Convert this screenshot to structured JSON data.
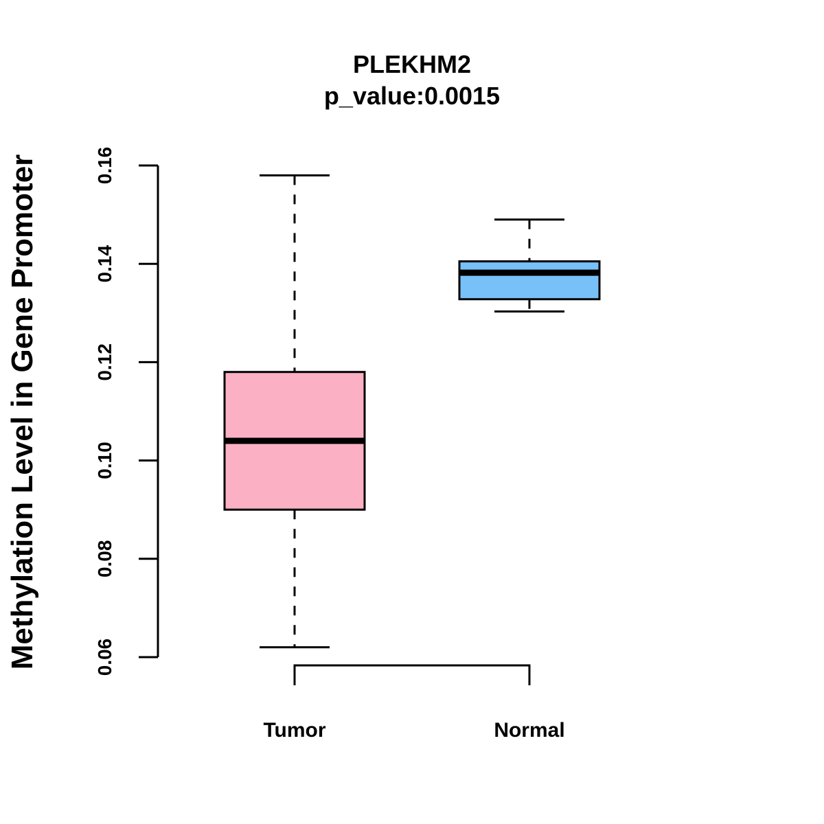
{
  "chart_data": {
    "type": "box",
    "title": "PLEKHM2",
    "subtitle": "p_value:0.0015",
    "xlabel": "",
    "ylabel": "Methylation Level in Gene Promoter",
    "ylim": [
      0.06,
      0.16
    ],
    "yticks": [
      0.06,
      0.08,
      0.1,
      0.12,
      0.14,
      0.16
    ],
    "ytick_labels": [
      "0.06",
      "0.08",
      "0.10",
      "0.12",
      "0.14",
      "0.16"
    ],
    "categories": [
      "Tumor",
      "Normal"
    ],
    "boxes": [
      {
        "name": "Tumor",
        "whisker_low": 0.062,
        "q1": 0.09,
        "median": 0.104,
        "q3": 0.118,
        "whisker_high": 0.158,
        "color": "#FBB1C3"
      },
      {
        "name": "Normal",
        "whisker_low": 0.1303,
        "q1": 0.1328,
        "median": 0.1382,
        "q3": 0.1405,
        "whisker_high": 0.149,
        "color": "#78C0F8"
      }
    ],
    "significance_bracket": {
      "between": [
        "Tumor",
        "Normal"
      ],
      "label": ""
    },
    "grid": false,
    "legend": "none"
  }
}
